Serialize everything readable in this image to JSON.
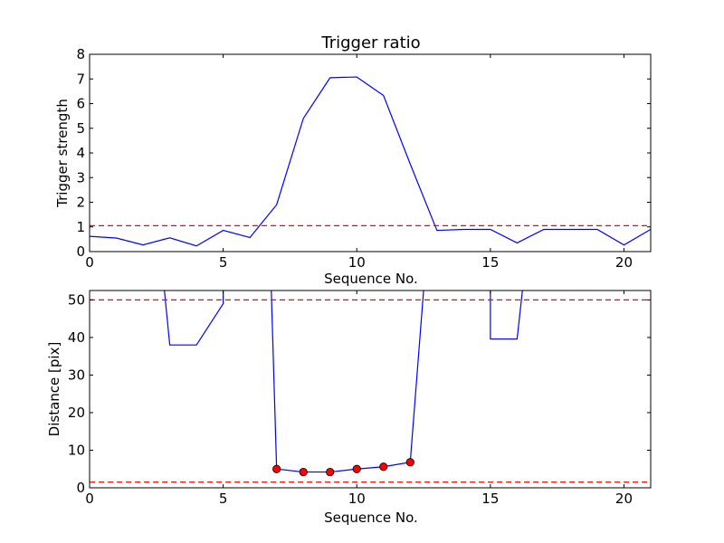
{
  "chart_data": [
    {
      "type": "line",
      "title": "Trigger ratio",
      "xlabel": "Sequence No.",
      "ylabel": "Trigger strength",
      "xlim": [
        0,
        21
      ],
      "ylim": [
        0,
        8
      ],
      "xticks": [
        0,
        5,
        10,
        15,
        20
      ],
      "yticks": [
        0,
        1,
        2,
        3,
        4,
        5,
        6,
        7,
        8
      ],
      "grid": false,
      "series": [
        {
          "color": "#0000ff",
          "x": [
            0,
            1,
            2,
            3,
            4,
            5,
            6,
            7,
            8,
            9,
            10,
            11,
            12,
            13,
            14,
            15,
            16,
            17,
            18,
            19,
            20,
            21
          ],
          "y": [
            0.62,
            0.55,
            0.27,
            0.56,
            0.23,
            0.86,
            0.57,
            1.9,
            5.4,
            7.05,
            7.08,
            6.33,
            3.55,
            0.86,
            0.9,
            0.9,
            0.35,
            0.9,
            0.9,
            0.9,
            0.27,
            0.9
          ]
        }
      ],
      "hlines": [
        {
          "y": 1.05,
          "color": "#ff0000",
          "style": "dashed"
        }
      ]
    },
    {
      "type": "line",
      "title": "",
      "xlabel": "Sequence No.",
      "ylabel": "Distance [pix]",
      "xlim": [
        0,
        21
      ],
      "ylim": [
        0,
        52.5
      ],
      "xticks": [
        0,
        5,
        10,
        15,
        20
      ],
      "yticks": [
        0,
        10,
        20,
        30,
        40,
        50
      ],
      "grid": false,
      "series": [
        {
          "color": "#0000ff",
          "x": [
            2.8,
            3,
            4,
            5,
            5,
            null,
            6.8,
            7,
            8,
            9,
            10,
            11,
            12,
            12.5,
            null,
            15,
            15,
            16,
            16.2
          ],
          "y": [
            52.5,
            38,
            38,
            49,
            52.5,
            null,
            52.5,
            5,
            4.2,
            4.2,
            5,
            5.6,
            6.8,
            52.5,
            null,
            52.5,
            39.6,
            39.6,
            52.5
          ]
        }
      ],
      "markers": {
        "color": "#ff0000",
        "x": [
          7,
          8,
          9,
          10,
          11,
          12
        ],
        "y": [
          5,
          4.2,
          4.2,
          5,
          5.6,
          6.8
        ]
      },
      "hlines": [
        {
          "y": 50,
          "color": "#ff0000",
          "style": "dashed"
        },
        {
          "y": 1.5,
          "color": "#ff0000",
          "style": "dashed"
        }
      ]
    }
  ]
}
